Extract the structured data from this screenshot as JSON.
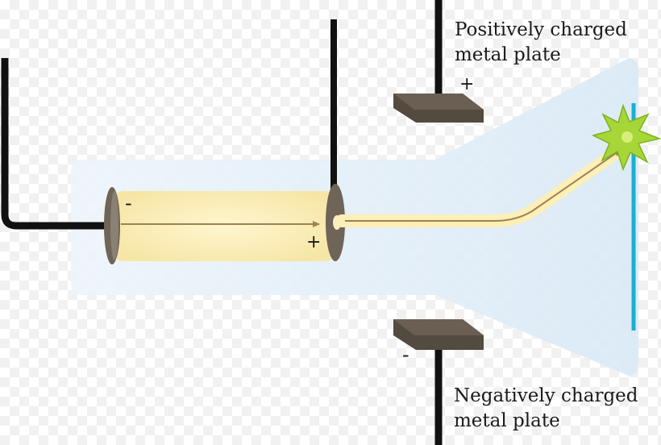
{
  "labels": {
    "positive_plate": [
      "Positively charged",
      "metal plate"
    ],
    "negative_plate": [
      "Negatively charged",
      "metal plate"
    ]
  },
  "signs": {
    "positive_plate": "+",
    "negative_plate": "-",
    "cathode": "-",
    "anode": "+"
  },
  "colors": {
    "tube_glass": "#e6f1fa",
    "wire": "#111111",
    "plate": "#534a40",
    "electrode": "#6e6457",
    "cathode_ray": "#fcefb8",
    "ray_arrow": "#a08050",
    "screen": "#1aaed0",
    "spark": "#a6d638"
  }
}
